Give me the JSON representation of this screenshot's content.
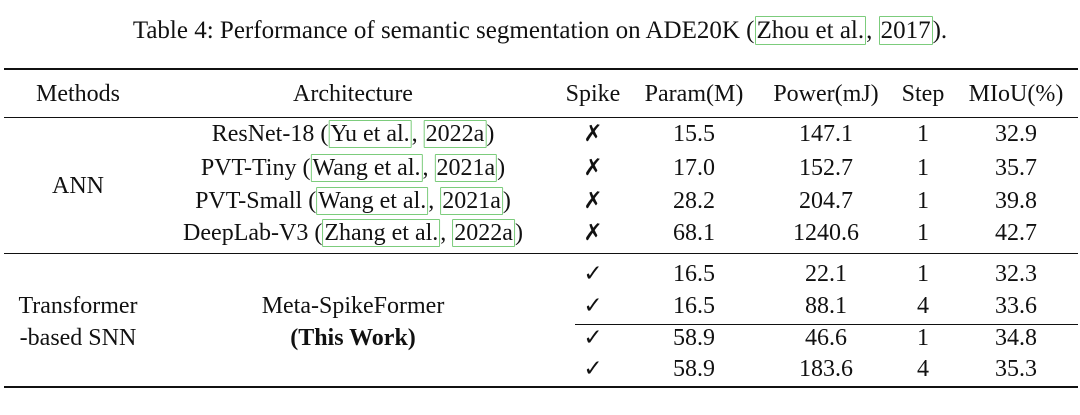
{
  "caption": {
    "prefix": "Table 4: Performance of semantic segmentation on ADE20K (",
    "cite_author": "Zhou et al.",
    "sep": ", ",
    "cite_year": "2017",
    "suffix": ")."
  },
  "headers": {
    "methods": "Methods",
    "architecture": "Architecture",
    "spike": "Spike",
    "param": "Param(M)",
    "power": "Power(mJ)",
    "step": "Step",
    "miou": "MIoU(%)"
  },
  "ann": {
    "label": "ANN",
    "rows": [
      {
        "arch": "ResNet-18",
        "cite_author": "Yu et al.",
        "cite_year": "2022a",
        "spike": "✗",
        "param": "15.5",
        "power": "147.1",
        "step": "1",
        "miou": "32.9"
      },
      {
        "arch": "PVT-Tiny",
        "cite_author": "Wang et al.",
        "cite_year": "2021a",
        "spike": "✗",
        "param": "17.0",
        "power": "152.7",
        "step": "1",
        "miou": "35.7"
      },
      {
        "arch": "PVT-Small",
        "cite_author": "Wang et al.",
        "cite_year": "2021a",
        "spike": "✗",
        "param": "28.2",
        "power": "204.7",
        "step": "1",
        "miou": "39.8"
      },
      {
        "arch": "DeepLab-V3",
        "cite_author": "Zhang et al.",
        "cite_year": "2022a",
        "spike": "✗",
        "param": "68.1",
        "power": "1240.6",
        "step": "1",
        "miou": "42.7"
      }
    ]
  },
  "snn": {
    "label_line1": "Transformer",
    "label_line2": "-based SNN",
    "arch_line1": "Meta-SpikeFormer",
    "arch_line2": "(This Work)",
    "rows": [
      {
        "spike": "✓",
        "param": "16.5",
        "power": "22.1",
        "step": "1",
        "miou": "32.3"
      },
      {
        "spike": "✓",
        "param": "16.5",
        "power": "88.1",
        "step": "4",
        "miou": "33.6"
      },
      {
        "spike": "✓",
        "param": "58.9",
        "power": "46.6",
        "step": "1",
        "miou": "34.8"
      },
      {
        "spike": "✓",
        "param": "58.9",
        "power": "183.6",
        "step": "4",
        "miou": "35.3"
      }
    ]
  }
}
